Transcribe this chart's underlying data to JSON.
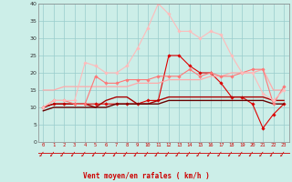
{
  "xlabel": "Vent moyen/en rafales ( km/h )",
  "background_color": "#cceee8",
  "grid_color": "#99cccc",
  "x_ticks": [
    0,
    1,
    2,
    3,
    4,
    5,
    6,
    7,
    8,
    9,
    10,
    11,
    12,
    13,
    14,
    15,
    16,
    17,
    18,
    19,
    20,
    21,
    22,
    23
  ],
  "ylim": [
    0,
    40
  ],
  "yticks": [
    0,
    5,
    10,
    15,
    20,
    25,
    30,
    35,
    40
  ],
  "series": [
    {
      "y": [
        10,
        11,
        11,
        11,
        11,
        11,
        11,
        11,
        11,
        11,
        12,
        12,
        25,
        25,
        22,
        20,
        20,
        17,
        13,
        13,
        11,
        4,
        8,
        11
      ],
      "color": "#dd0000",
      "lw": 0.8,
      "marker": "D",
      "ms": 1.8
    },
    {
      "y": [
        10,
        11,
        11,
        11,
        11,
        10,
        12,
        13,
        13,
        11,
        11,
        12,
        13,
        13,
        13,
        13,
        13,
        13,
        13,
        13,
        13,
        13,
        12,
        12
      ],
      "color": "#aa0000",
      "lw": 1.0,
      "marker": null,
      "ms": 0
    },
    {
      "y": [
        9,
        10,
        10,
        10,
        10,
        10,
        10,
        11,
        11,
        11,
        11,
        11,
        12,
        12,
        12,
        12,
        12,
        12,
        12,
        12,
        12,
        12,
        11,
        11
      ],
      "color": "#660000",
      "lw": 1.0,
      "marker": null,
      "ms": 0
    },
    {
      "y": [
        15,
        15,
        16,
        16,
        16,
        16,
        16,
        16,
        16,
        17,
        17,
        17,
        18,
        18,
        18,
        18,
        19,
        19,
        20,
        20,
        20,
        21,
        15,
        15
      ],
      "color": "#ffaaaa",
      "lw": 0.9,
      "marker": null,
      "ms": 0
    },
    {
      "y": [
        10,
        12,
        12,
        11,
        11,
        19,
        17,
        17,
        18,
        18,
        18,
        19,
        19,
        19,
        21,
        19,
        20,
        19,
        19,
        20,
        21,
        21,
        11,
        16
      ],
      "color": "#ff7777",
      "lw": 0.8,
      "marker": "D",
      "ms": 1.8
    },
    {
      "y": [
        10,
        12,
        12,
        12,
        23,
        22,
        20,
        20,
        22,
        27,
        33,
        40,
        37,
        32,
        32,
        30,
        32,
        31,
        25,
        20,
        20,
        14,
        12,
        15
      ],
      "color": "#ffbbbb",
      "lw": 0.8,
      "marker": "D",
      "ms": 1.8
    }
  ],
  "arrow_color": "#cc2222"
}
